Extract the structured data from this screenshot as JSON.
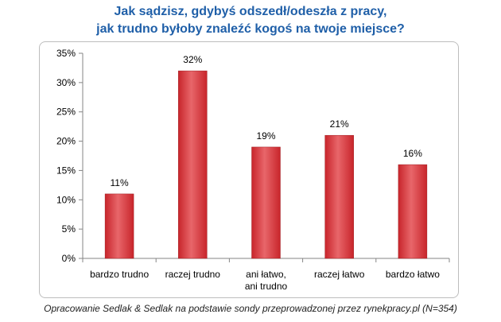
{
  "chart_data": {
    "type": "bar",
    "title_lines": [
      "Jak sądzisz, gdybyś odszedł/odeszła z pracy,",
      "jak trudno byłoby znaleźć kogoś na twoje miejsce?"
    ],
    "categories": [
      [
        "bardzo trudno"
      ],
      [
        "raczej trudno"
      ],
      [
        "ani łatwo,",
        "ani trudno"
      ],
      [
        "raczej łatwo"
      ],
      [
        "bardzo łatwo"
      ]
    ],
    "values": [
      11,
      32,
      19,
      21,
      16
    ],
    "data_labels": [
      "11%",
      "32%",
      "19%",
      "21%",
      "16%"
    ],
    "y_ticks": [
      "0%",
      "5%",
      "10%",
      "15%",
      "20%",
      "25%",
      "30%",
      "35%"
    ],
    "ylim": [
      0,
      35
    ],
    "grid": false,
    "bar_color": "#c8252b",
    "bar_highlight": "#e8666a"
  },
  "footer": "Opracowanie Sedlak & Sedlak na podstawie sondy przeprowadzonej przez rynekpracy.pl (N=354)"
}
